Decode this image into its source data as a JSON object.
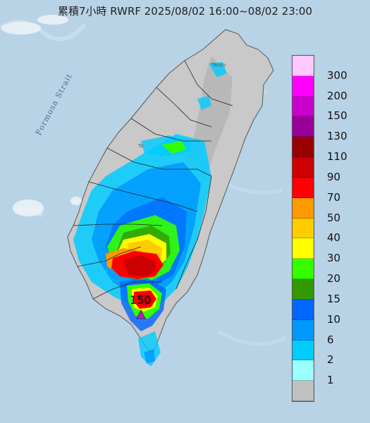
{
  "title": "累積7小時 RWRF 2025/08/02 16:00~08/02 23:00",
  "strait_label": "Formosa Strait",
  "place_labels": [
    "Taoyu",
    "Ta"
  ],
  "max_rain": {
    "value": "150",
    "marker": "triangle",
    "color": "#c01bd0"
  },
  "colors": {
    "sea": "#b9d3e6",
    "land": "#c9c9c9",
    "mountain": "#bfbfbf",
    "border": "#333333"
  },
  "legend": {
    "unit": "",
    "bins": [
      {
        "label": "300",
        "color": "#ffc8ff"
      },
      {
        "label": "200",
        "color": "#ff00ff"
      },
      {
        "label": "150",
        "color": "#cc00cc"
      },
      {
        "label": "130",
        "color": "#990099"
      },
      {
        "label": "110",
        "color": "#990000"
      },
      {
        "label": "90",
        "color": "#cc0000"
      },
      {
        "label": "70",
        "color": "#ff0000"
      },
      {
        "label": "50",
        "color": "#ff9900"
      },
      {
        "label": "40",
        "color": "#ffcc00"
      },
      {
        "label": "30",
        "color": "#ffff00"
      },
      {
        "label": "20",
        "color": "#33ff00"
      },
      {
        "label": "15",
        "color": "#339900"
      },
      {
        "label": "10",
        "color": "#0066ff"
      },
      {
        "label": "6",
        "color": "#0099ff"
      },
      {
        "label": "2",
        "color": "#00ccff"
      },
      {
        "label": "1",
        "color": "#99ffff"
      },
      {
        "label": "",
        "color": "#c0c0c0"
      }
    ]
  }
}
